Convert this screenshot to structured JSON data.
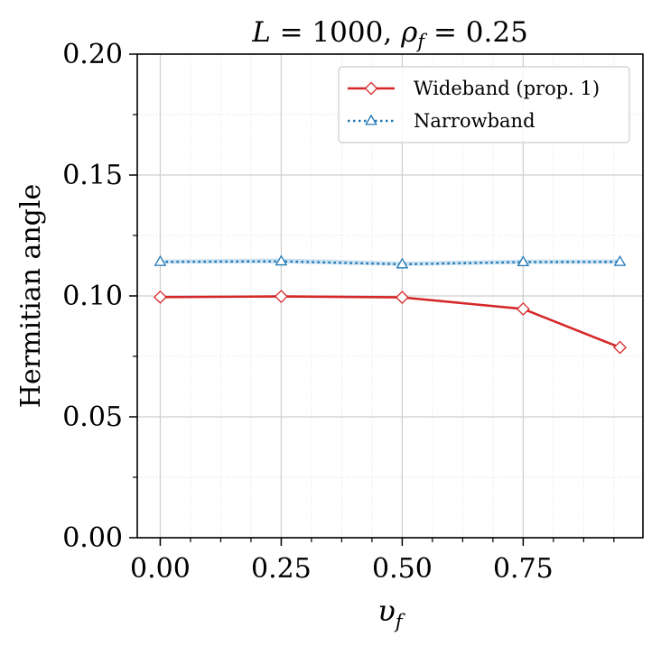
{
  "chart_data": {
    "type": "line",
    "title": "L = 1000, ρ_f = 0.25",
    "title_parts": {
      "L": "L",
      "eq1": " = 1000, ",
      "rho": "ρ",
      "sub": "f",
      "eq2": " = 0.25"
    },
    "xlabel": "υ_f",
    "xlabel_parts": {
      "main": "υ",
      "sub": "f"
    },
    "ylabel": "Hermitian angle",
    "xlim": [
      -0.0475,
      0.9975
    ],
    "ylim": [
      0.0,
      0.2
    ],
    "xticks": [
      0.0,
      0.25,
      0.5,
      0.75
    ],
    "xtick_labels": [
      "0.00",
      "0.25",
      "0.50",
      "0.75"
    ],
    "yticks": [
      0.0,
      0.05,
      0.1,
      0.15,
      0.2
    ],
    "ytick_labels": [
      "0.00",
      "0.05",
      "0.10",
      "0.15",
      "0.20"
    ],
    "x_minor_step": 0.0625,
    "y_minor_step": 0.025,
    "grid": true,
    "legend_position": "top-right",
    "x": [
      0.0,
      0.25,
      0.5,
      0.75,
      0.95
    ],
    "series": [
      {
        "name": "Wideband (prop. 1)",
        "values": [
          0.0995,
          0.0998,
          0.0994,
          0.0946,
          0.0787
        ],
        "color": "#d62728",
        "linestyle": "solid",
        "marker": "diamond"
      },
      {
        "name": "Narrowband",
        "values": [
          0.1141,
          0.1143,
          0.1131,
          0.114,
          0.1141
        ],
        "band_lower": [
          0.1133,
          0.1135,
          0.1124,
          0.1132,
          0.1133
        ],
        "band_upper": [
          0.115,
          0.1155,
          0.1142,
          0.115,
          0.1151
        ],
        "color": "#1f77b4",
        "band_color": "#bcd8ec",
        "linestyle": "dotted",
        "marker": "triangle"
      }
    ]
  }
}
